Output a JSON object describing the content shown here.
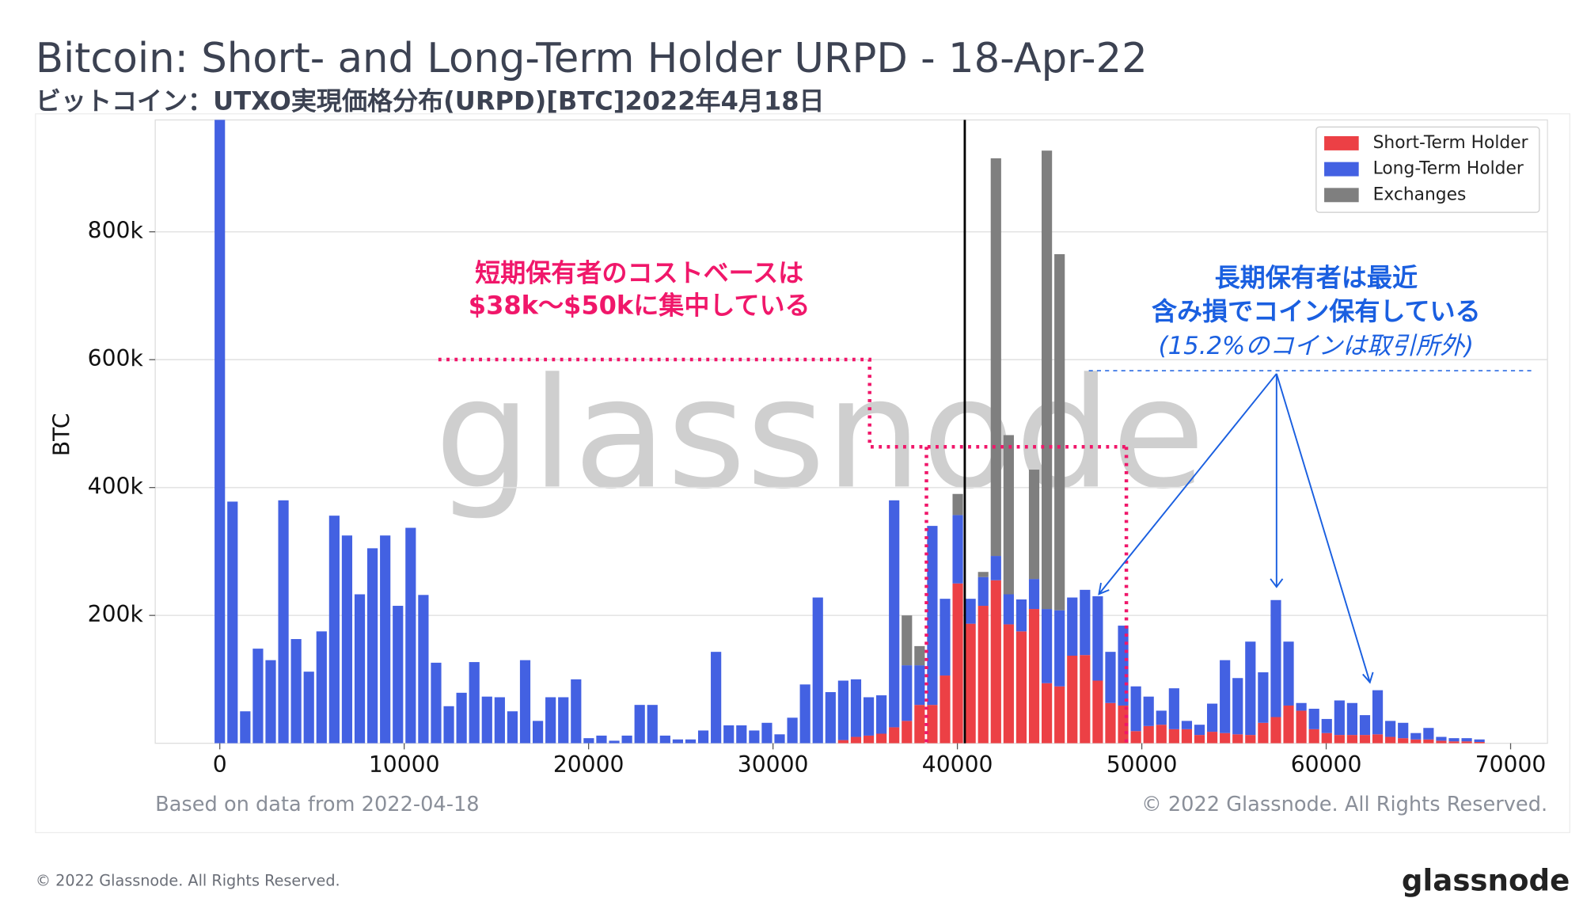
{
  "chart_data": {
    "type": "bar",
    "stacked": true,
    "title": "Bitcoin: Short- and Long-Term Holder URPD - 18-Apr-22",
    "subtitle": "ビットコイン：UTXO実現価格分布(URPD)[BTC]2022年4月18日",
    "y_label": "BTC",
    "x": [
      0,
      690,
      1380,
      2070,
      2760,
      3450,
      4140,
      4830,
      5520,
      6210,
      6900,
      7590,
      8280,
      8970,
      9660,
      10350,
      11040,
      11730,
      12420,
      13110,
      13800,
      14490,
      15180,
      15870,
      16560,
      17250,
      17940,
      18630,
      19320,
      20010,
      20700,
      21390,
      22080,
      22770,
      23460,
      24150,
      24840,
      25530,
      26220,
      26910,
      27600,
      28290,
      28980,
      29670,
      30360,
      31050,
      31740,
      32430,
      33120,
      33810,
      34500,
      35190,
      35880,
      36570,
      37260,
      37950,
      38640,
      39330,
      40020,
      40710,
      41400,
      42090,
      42780,
      43470,
      44160,
      44850,
      45540,
      46230,
      46920,
      47610,
      48300,
      48990,
      49680,
      50370,
      51060,
      51750,
      52440,
      53130,
      53820,
      54510,
      55200,
      55890,
      56580,
      57270,
      57960,
      58650,
      59340,
      60030,
      60720,
      61410,
      62100,
      62790,
      63480,
      64170,
      64860,
      65550,
      66240,
      66930,
      67620,
      68310
    ],
    "series": [
      {
        "name": "Short-Term Holder",
        "color": "#ec4045",
        "values": [
          0,
          0,
          0,
          0,
          0,
          0,
          0,
          0,
          0,
          0,
          0,
          0,
          0,
          0,
          0,
          0,
          0,
          0,
          0,
          0,
          0,
          0,
          0,
          0,
          0,
          0,
          0,
          0,
          0,
          0,
          0,
          0,
          0,
          0,
          0,
          0,
          0,
          0,
          0,
          0,
          0,
          0,
          0,
          0,
          0,
          0,
          0,
          0,
          0,
          5000,
          10000,
          12000,
          15000,
          25000,
          35000,
          60000,
          60000,
          106000,
          250000,
          187000,
          215000,
          255000,
          186000,
          175000,
          210000,
          94000,
          89000,
          137000,
          138000,
          98000,
          63000,
          59000,
          19000,
          27000,
          29000,
          22000,
          22000,
          13000,
          18000,
          16000,
          14000,
          13000,
          32000,
          41000,
          59000,
          51000,
          22000,
          16000,
          13000,
          13000,
          13000,
          14000,
          10000,
          8000,
          6000,
          6000,
          4000,
          3000,
          3000,
          2000
        ]
      },
      {
        "name": "Long-Term Holder",
        "color": "#4361e2",
        "values": [
          1000000,
          378000,
          50000,
          148000,
          130000,
          380000,
          163000,
          112000,
          175000,
          356000,
          325000,
          233000,
          305000,
          325000,
          215000,
          337000,
          232000,
          126000,
          58000,
          79000,
          127000,
          73000,
          72000,
          50000,
          130000,
          35000,
          72000,
          72000,
          100000,
          8000,
          12000,
          4000,
          12000,
          60000,
          60000,
          12000,
          6000,
          6000,
          20000,
          143000,
          28000,
          28000,
          20000,
          32000,
          14000,
          40000,
          92000,
          228000,
          80000,
          93000,
          90000,
          60000,
          60000,
          355000,
          87000,
          62000,
          280000,
          120000,
          107000,
          39000,
          45000,
          38000,
          47000,
          50000,
          47000,
          116000,
          119000,
          91000,
          102000,
          132000,
          80000,
          125000,
          70000,
          46000,
          22000,
          64000,
          13000,
          16000,
          44000,
          114000,
          88000,
          146000,
          79000,
          183000,
          100000,
          12000,
          32000,
          22000,
          54000,
          50000,
          31000,
          69000,
          25000,
          24000,
          10000,
          18000,
          6000,
          5000,
          5000,
          4000
        ]
      },
      {
        "name": "Exchanges",
        "color": "#7f7f7f",
        "values": [
          0,
          0,
          0,
          0,
          0,
          0,
          0,
          0,
          0,
          0,
          0,
          0,
          0,
          0,
          0,
          0,
          0,
          0,
          0,
          0,
          0,
          0,
          0,
          0,
          0,
          0,
          0,
          0,
          0,
          0,
          0,
          0,
          0,
          0,
          0,
          0,
          0,
          0,
          0,
          0,
          0,
          0,
          0,
          0,
          0,
          0,
          0,
          0,
          0,
          0,
          0,
          0,
          0,
          0,
          78000,
          30000,
          0,
          0,
          33000,
          0,
          8000,
          622000,
          249000,
          0,
          171000,
          717000,
          557000,
          0,
          0,
          0,
          0,
          0,
          0,
          0,
          0,
          0,
          0,
          0,
          0,
          0,
          0,
          0,
          0,
          0,
          0,
          0,
          0,
          0,
          0,
          0,
          0,
          0,
          0,
          0,
          0,
          0,
          0,
          0,
          0,
          0
        ]
      }
    ],
    "xlim": [
      -3500,
      72000
    ],
    "ylim": [
      0,
      975000
    ],
    "xticks": [
      0,
      10000,
      20000,
      30000,
      40000,
      50000,
      60000,
      70000
    ],
    "yticks": [
      {
        "value": 200000,
        "label": "200k"
      },
      {
        "value": 400000,
        "label": "400k"
      },
      {
        "value": 600000,
        "label": "600k"
      },
      {
        "value": 800000,
        "label": "800k"
      }
    ],
    "grid": true,
    "legend": "upper right",
    "vline_x": 40400,
    "annotations": {
      "sth_line1": "短期保有者のコストベースは",
      "sth_line2": "$38k〜$50kに集中している",
      "lth_line1": "長期保有者は最近",
      "lth_line2": "含み損でコイン保有している",
      "lth_line3": "(15.2%のコインは取引所外)"
    },
    "watermark": "glassnode",
    "source_note": "Based on data from 2022-04-18",
    "chart_copyright": "© 2022 Glassnode. All Rights Reserved."
  },
  "footer": {
    "copyright": "© 2022 Glassnode. All Rights Reserved.",
    "logo": "glassnode"
  }
}
